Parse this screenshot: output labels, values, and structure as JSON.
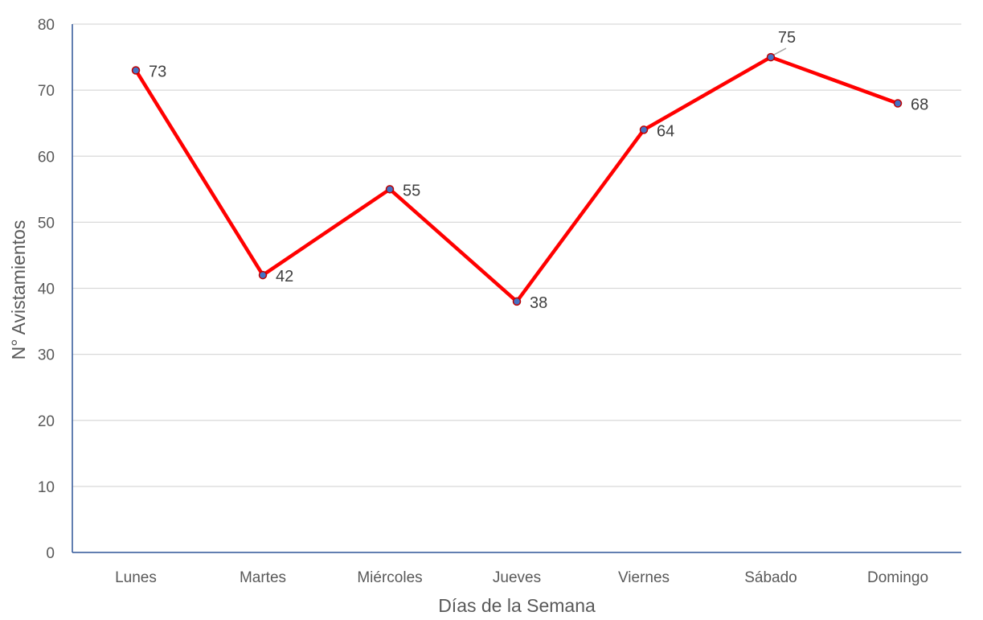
{
  "chart_data": {
    "type": "line",
    "title": "",
    "xlabel": "Días de la Semana",
    "ylabel": "N° Avistamientos",
    "categories": [
      "Lunes",
      "Martes",
      "Miércoles",
      "Jueves",
      "Viernes",
      "Sábado",
      "Domingo"
    ],
    "series": [
      {
        "values": [
          73,
          42,
          55,
          38,
          64,
          75,
          68
        ]
      }
    ],
    "ylim": [
      0,
      80
    ],
    "yticks": [
      0,
      10,
      20,
      30,
      40,
      50,
      60,
      70,
      80
    ],
    "grid": true,
    "legend": "none",
    "data_labels": true,
    "colors": {
      "line": "#ff0000",
      "marker_fill": "#4472c4",
      "marker_stroke": "#c00000",
      "grid": "#d9d9d9",
      "axis": "#2f5597",
      "text": "#595959"
    }
  }
}
